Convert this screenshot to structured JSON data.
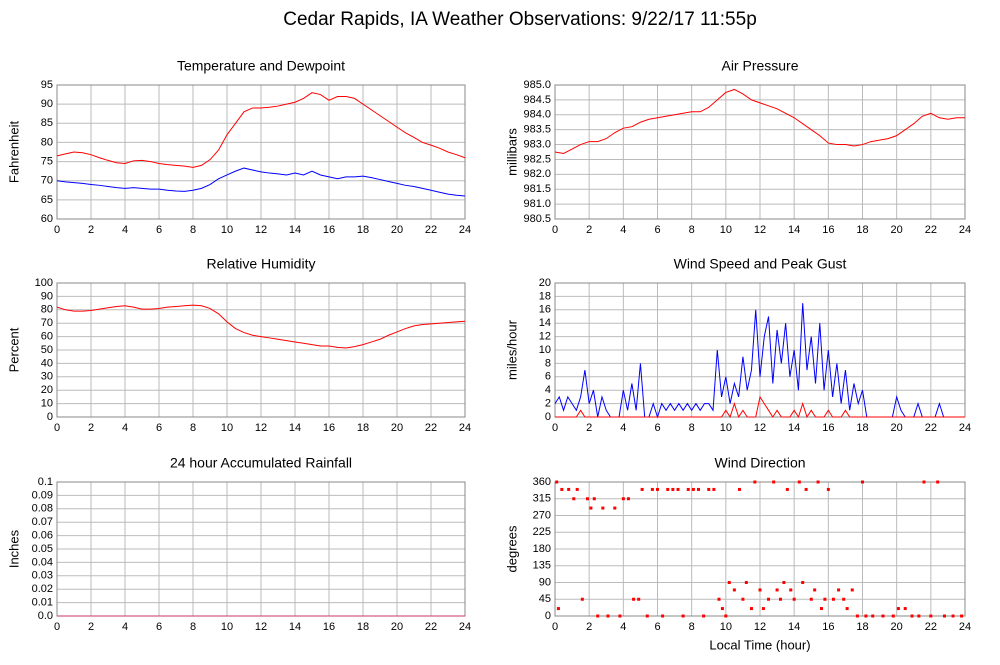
{
  "title": "Cedar Rapids, IA Weather Observations: 9/22/17 11:55p",
  "chart_data": [
    {
      "type": "line",
      "title": "Temperature and Dewpoint",
      "ylabel": "Fahrenheit",
      "grid": true,
      "xlim": [
        0,
        24
      ],
      "xticks": [
        0,
        2,
        4,
        6,
        8,
        10,
        12,
        14,
        16,
        18,
        20,
        22,
        24
      ],
      "ylim": [
        60,
        95
      ],
      "yticks": [
        60,
        65,
        70,
        75,
        80,
        85,
        90,
        95
      ],
      "x": [
        0,
        0.5,
        1,
        1.5,
        2,
        2.5,
        3,
        3.5,
        4,
        4.5,
        5,
        5.5,
        6,
        6.5,
        7,
        7.5,
        8,
        8.5,
        9,
        9.5,
        10,
        10.5,
        11,
        11.5,
        12,
        12.5,
        13,
        13.5,
        14,
        14.5,
        15,
        15.5,
        16,
        16.5,
        17,
        17.5,
        18,
        18.5,
        19,
        19.5,
        20,
        20.5,
        21,
        21.5,
        22,
        22.5,
        23,
        23.5,
        24
      ],
      "series": [
        {
          "color": "#ff0000",
          "values": [
            76.5,
            77,
            77.5,
            77.3,
            76.8,
            76,
            75.3,
            74.7,
            74.5,
            75.2,
            75.3,
            75,
            74.5,
            74.2,
            74,
            73.8,
            73.5,
            74,
            75.5,
            78,
            82,
            85,
            88,
            89,
            89,
            89.2,
            89.5,
            90,
            90.5,
            91.5,
            93,
            92.5,
            91,
            92,
            92,
            91.5,
            90,
            88.5,
            87,
            85.5,
            84,
            82.5,
            81.3,
            80,
            79.3,
            78.5,
            77.5,
            76.8,
            76
          ]
        },
        {
          "color": "#0000ff",
          "values": [
            70,
            69.7,
            69.5,
            69.3,
            69,
            68.8,
            68.5,
            68.2,
            68,
            68.2,
            68,
            67.8,
            67.8,
            67.5,
            67.3,
            67.2,
            67.5,
            68,
            69,
            70.5,
            71.5,
            72.5,
            73.3,
            72.8,
            72.3,
            72,
            71.8,
            71.5,
            72,
            71.5,
            72.5,
            71.5,
            71,
            70.5,
            71,
            71,
            71.2,
            70.8,
            70.3,
            69.8,
            69.3,
            68.8,
            68.5,
            68,
            67.5,
            67,
            66.5,
            66.2,
            66
          ]
        }
      ]
    },
    {
      "type": "line",
      "title": "Air Pressure",
      "ylabel": "millibars",
      "grid": true,
      "xlim": [
        0,
        24
      ],
      "xticks": [
        0,
        2,
        4,
        6,
        8,
        10,
        12,
        14,
        16,
        18,
        20,
        22,
        24
      ],
      "ylim": [
        980.5,
        985
      ],
      "yticks": [
        980.5,
        {
          "value": 981,
          "label": "981.0"
        },
        981.5,
        {
          "value": 982,
          "label": "982.0"
        },
        982.5,
        {
          "value": 983,
          "label": "983.0"
        },
        983.5,
        {
          "value": 984,
          "label": "984.0"
        },
        984.5,
        {
          "value": 985,
          "label": "985.0"
        }
      ],
      "x": [
        0,
        0.5,
        1,
        1.5,
        2,
        2.5,
        3,
        3.5,
        4,
        4.5,
        5,
        5.5,
        6,
        6.5,
        7,
        7.5,
        8,
        8.5,
        9,
        9.5,
        10,
        10.5,
        11,
        11.5,
        12,
        12.5,
        13,
        13.5,
        14,
        14.5,
        15,
        15.5,
        16,
        16.5,
        17,
        17.5,
        18,
        18.5,
        19,
        19.5,
        20,
        20.5,
        21,
        21.5,
        22,
        22.5,
        23,
        23.5,
        24
      ],
      "series": [
        {
          "color": "#ff0000",
          "values": [
            982.75,
            982.7,
            982.85,
            983.0,
            983.1,
            983.1,
            983.2,
            983.4,
            983.55,
            983.6,
            983.75,
            983.85,
            983.9,
            983.95,
            984.0,
            984.05,
            984.1,
            984.1,
            984.25,
            984.5,
            984.75,
            984.85,
            984.7,
            984.5,
            984.4,
            984.3,
            984.2,
            984.05,
            983.9,
            983.7,
            983.5,
            983.3,
            983.05,
            983.0,
            983.0,
            982.95,
            983.0,
            983.1,
            983.15,
            983.2,
            983.3,
            983.5,
            983.7,
            983.95,
            984.05,
            983.9,
            983.85,
            983.9,
            983.9
          ]
        }
      ]
    },
    {
      "type": "line",
      "title": "Relative Humidity",
      "ylabel": "Percent",
      "grid": true,
      "xlim": [
        0,
        24
      ],
      "xticks": [
        0,
        2,
        4,
        6,
        8,
        10,
        12,
        14,
        16,
        18,
        20,
        22,
        24
      ],
      "ylim": [
        0,
        100
      ],
      "yticks": [
        0,
        10,
        20,
        30,
        40,
        50,
        60,
        70,
        80,
        90,
        100
      ],
      "x": [
        0,
        0.5,
        1,
        1.5,
        2,
        2.5,
        3,
        3.5,
        4,
        4.5,
        5,
        5.5,
        6,
        6.5,
        7,
        7.5,
        8,
        8.5,
        9,
        9.5,
        10,
        10.5,
        11,
        11.5,
        12,
        12.5,
        13,
        13.5,
        14,
        14.5,
        15,
        15.5,
        16,
        16.5,
        17,
        17.5,
        18,
        18.5,
        19,
        19.5,
        20,
        20.5,
        21,
        21.5,
        22,
        22.5,
        23,
        23.5,
        24
      ],
      "series": [
        {
          "color": "#ff0000",
          "values": [
            82,
            80,
            79,
            79,
            79.5,
            80.5,
            81.5,
            82.5,
            83,
            82,
            80.5,
            80.5,
            81,
            82,
            82.5,
            83,
            83.5,
            83,
            81,
            77,
            71,
            66,
            63,
            61,
            60,
            59,
            58,
            57,
            56,
            55,
            54,
            53,
            53,
            52,
            51.5,
            52.5,
            54,
            56,
            58,
            61,
            63.5,
            66,
            68,
            69,
            69.5,
            70,
            70.5,
            71,
            71.5
          ]
        }
      ]
    },
    {
      "type": "line",
      "title": "Wind Speed and Peak Gust",
      "ylabel": "miles/hour",
      "grid": true,
      "xlim": [
        0,
        24
      ],
      "xticks": [
        0,
        2,
        4,
        6,
        8,
        10,
        12,
        14,
        16,
        18,
        20,
        22,
        24
      ],
      "ylim": [
        0,
        20
      ],
      "yticks": [
        0,
        2,
        4,
        6,
        8,
        10,
        12,
        14,
        16,
        18,
        20
      ],
      "x": [
        0,
        0.25,
        0.5,
        0.75,
        1,
        1.25,
        1.5,
        1.75,
        2,
        2.25,
        2.5,
        2.75,
        3,
        3.25,
        3.5,
        3.75,
        4,
        4.25,
        4.5,
        4.75,
        5,
        5.25,
        5.5,
        5.75,
        6,
        6.25,
        6.5,
        6.75,
        7,
        7.25,
        7.5,
        7.75,
        8,
        8.25,
        8.5,
        8.75,
        9,
        9.25,
        9.5,
        9.75,
        10,
        10.25,
        10.5,
        10.75,
        11,
        11.25,
        11.5,
        11.75,
        12,
        12.25,
        12.5,
        12.75,
        13,
        13.25,
        13.5,
        13.75,
        14,
        14.25,
        14.5,
        14.75,
        15,
        15.25,
        15.5,
        15.75,
        16,
        16.25,
        16.5,
        16.75,
        17,
        17.25,
        17.5,
        17.75,
        18,
        18.25,
        18.5,
        18.75,
        19,
        19.25,
        19.5,
        19.75,
        20,
        20.25,
        20.5,
        20.75,
        21,
        21.25,
        21.5,
        21.75,
        22,
        22.25,
        22.5,
        22.75,
        23,
        23.25,
        23.5,
        23.75,
        24
      ],
      "series": [
        {
          "color": "#0000ff",
          "values": [
            2,
            3,
            1,
            3,
            2,
            1,
            3,
            7,
            2,
            4,
            0,
            3,
            1,
            0,
            0,
            0,
            4,
            1,
            5,
            1,
            8,
            0,
            0,
            2,
            0,
            2,
            1,
            2,
            1,
            2,
            1,
            2,
            1,
            2,
            1,
            2,
            2,
            1,
            10,
            3,
            6,
            2,
            5,
            3,
            9,
            4,
            7,
            16,
            6,
            12,
            15,
            5,
            13,
            8,
            14,
            6,
            10,
            4,
            17,
            7,
            12,
            5,
            14,
            4,
            10,
            3,
            8,
            2,
            7,
            1,
            5,
            2,
            4,
            0,
            0,
            0,
            0,
            0,
            0,
            0,
            3,
            1,
            0,
            0,
            0,
            2,
            0,
            0,
            0,
            0,
            2,
            0,
            0,
            0,
            0,
            0,
            0
          ]
        },
        {
          "color": "#ff0000",
          "values": [
            0,
            0,
            0,
            0,
            0,
            0,
            1,
            0,
            0,
            0,
            0,
            0,
            0,
            0,
            0,
            0,
            0,
            0,
            0,
            0,
            0,
            0,
            0,
            0,
            0,
            0,
            0,
            0,
            0,
            0,
            0,
            0,
            0,
            0,
            0,
            0,
            0,
            0,
            0,
            0,
            1,
            0,
            2,
            0,
            1,
            0,
            0,
            0,
            3,
            2,
            1,
            0,
            1,
            0,
            0,
            0,
            1,
            0,
            2,
            0,
            1,
            0,
            0,
            0,
            1,
            0,
            0,
            0,
            1,
            0,
            0,
            0,
            0,
            0,
            0,
            0,
            0,
            0,
            0,
            0,
            0,
            0,
            0,
            0,
            0,
            0,
            0,
            0,
            0,
            0,
            0,
            0,
            0,
            0,
            0,
            0,
            0
          ]
        }
      ]
    },
    {
      "type": "line",
      "title": "24 hour Accumulated Rainfall",
      "ylabel": "Inches",
      "grid": true,
      "xlim": [
        0,
        24
      ],
      "xticks": [
        0,
        2,
        4,
        6,
        8,
        10,
        12,
        14,
        16,
        18,
        20,
        22,
        24
      ],
      "ylim": [
        0,
        0.1
      ],
      "yticks": [
        {
          "value": 0,
          "label": "0.0"
        },
        0.01,
        0.02,
        0.03,
        0.04,
        0.05,
        0.06,
        0.07,
        0.08,
        0.09,
        0.1
      ],
      "x": [
        0,
        24
      ],
      "series": [
        {
          "color": "#cc3366",
          "values": [
            0,
            0
          ]
        }
      ]
    },
    {
      "type": "scatter",
      "title": "Wind Direction",
      "ylabel": "degrees",
      "xlabel": "Local Time (hour)",
      "grid": true,
      "xlim": [
        0,
        24
      ],
      "xticks": [
        0,
        2,
        4,
        6,
        8,
        10,
        12,
        14,
        16,
        18,
        20,
        22,
        24
      ],
      "ylim": [
        0,
        360
      ],
      "yticks": [
        0,
        45,
        90,
        135,
        180,
        225,
        270,
        315,
        360
      ],
      "x": [
        0.1,
        0.2,
        0.4,
        0.8,
        1.1,
        1.3,
        1.6,
        1.9,
        2.1,
        2.3,
        2.5,
        2.8,
        3.1,
        3.5,
        3.8,
        4.0,
        4.3,
        4.6,
        4.9,
        5.1,
        5.4,
        5.7,
        6.0,
        6.3,
        6.6,
        6.9,
        7.2,
        7.5,
        7.8,
        8.1,
        8.4,
        8.7,
        9.0,
        9.3,
        9.6,
        9.8,
        10.0,
        10.2,
        10.5,
        10.8,
        11.0,
        11.2,
        11.5,
        11.7,
        12.0,
        12.2,
        12.5,
        12.8,
        13.0,
        13.2,
        13.4,
        13.6,
        13.8,
        14.0,
        14.3,
        14.5,
        14.7,
        15.0,
        15.2,
        15.4,
        15.6,
        15.8,
        16.0,
        16.3,
        16.6,
        16.9,
        17.1,
        17.4,
        17.7,
        18.0,
        18.2,
        18.6,
        19.2,
        19.8,
        20.1,
        20.5,
        20.9,
        21.3,
        21.6,
        22.0,
        22.4,
        22.8,
        23.3,
        23.8
      ],
      "series": [
        {
          "color": "#ff0000",
          "values": [
            360,
            20,
            340,
            340,
            315,
            340,
            45,
            315,
            290,
            315,
            0,
            290,
            0,
            290,
            0,
            315,
            315,
            45,
            45,
            340,
            0,
            340,
            340,
            0,
            340,
            340,
            340,
            0,
            340,
            340,
            340,
            0,
            340,
            340,
            45,
            20,
            0,
            90,
            70,
            340,
            45,
            90,
            20,
            360,
            70,
            20,
            45,
            360,
            70,
            45,
            90,
            340,
            70,
            45,
            360,
            90,
            340,
            45,
            70,
            360,
            20,
            45,
            340,
            45,
            70,
            45,
            20,
            70,
            0,
            360,
            0,
            0,
            0,
            0,
            20,
            20,
            0,
            0,
            360,
            0,
            360,
            0,
            0,
            0
          ]
        }
      ]
    }
  ]
}
